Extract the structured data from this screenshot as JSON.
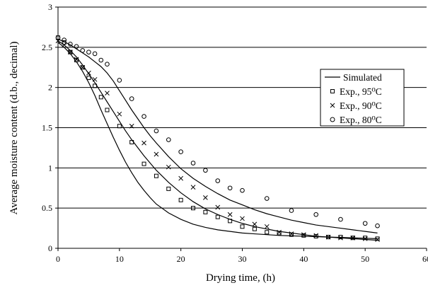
{
  "chart_data": {
    "type": "scatter",
    "xlabel": "Drying time, (h)",
    "ylabel": "Average moisture content (d.b., decimal)",
    "xlim": [
      0,
      60
    ],
    "ylim": [
      0,
      3
    ],
    "x_ticks": [
      0,
      10,
      20,
      30,
      40,
      50,
      60
    ],
    "y_ticks": [
      0,
      0.5,
      1,
      1.5,
      2,
      2.5,
      3
    ],
    "x_tick_labels": [
      "0",
      "10",
      "20",
      "30",
      "40",
      "50",
      "60"
    ],
    "y_tick_labels": [
      "0",
      "0.5",
      "1",
      "1.5",
      "2",
      "2.5",
      "3"
    ],
    "grid": "horizontal",
    "legend_position": "right",
    "legend": [
      {
        "label": "Simulated",
        "marker": "line"
      },
      {
        "label": "Exp., 95⁰C",
        "marker": "square"
      },
      {
        "label": "Exp., 90⁰C",
        "marker": "cross"
      },
      {
        "label": "Exp., 80⁰C",
        "marker": "circle"
      }
    ],
    "series": [
      {
        "name": "Exp., 95⁰C",
        "marker": "square",
        "x": [
          0,
          1,
          2,
          3,
          4,
          5,
          6,
          7,
          8,
          10,
          12,
          14,
          16,
          18,
          20,
          22,
          24,
          26,
          28,
          30,
          32,
          34,
          36,
          38,
          40,
          42,
          44,
          46,
          48,
          50,
          52
        ],
        "y": [
          2.62,
          2.56,
          2.44,
          2.34,
          2.25,
          2.12,
          2.02,
          1.88,
          1.72,
          1.52,
          1.32,
          1.05,
          0.9,
          0.74,
          0.6,
          0.5,
          0.45,
          0.39,
          0.34,
          0.27,
          0.24,
          0.2,
          0.19,
          0.17,
          0.16,
          0.15,
          0.14,
          0.14,
          0.13,
          0.13,
          0.12
        ]
      },
      {
        "name": "Exp., 90⁰C",
        "marker": "cross",
        "x": [
          0,
          1,
          2,
          3,
          4,
          5,
          6,
          8,
          10,
          12,
          14,
          16,
          18,
          20,
          22,
          24,
          26,
          28,
          30,
          32,
          34,
          36,
          38,
          40,
          42,
          44,
          46,
          48,
          50,
          52
        ],
        "y": [
          2.58,
          2.53,
          2.44,
          2.35,
          2.25,
          2.18,
          2.1,
          1.93,
          1.67,
          1.52,
          1.31,
          1.17,
          1.01,
          0.87,
          0.76,
          0.63,
          0.51,
          0.42,
          0.37,
          0.3,
          0.27,
          0.2,
          0.18,
          0.17,
          0.16,
          0.14,
          0.13,
          0.13,
          0.12,
          0.11
        ]
      },
      {
        "name": "Exp., 80⁰C",
        "marker": "circle",
        "x": [
          0,
          1,
          2,
          3,
          4,
          5,
          6,
          7,
          8,
          10,
          12,
          14,
          16,
          18,
          20,
          22,
          24,
          26,
          28,
          30,
          34,
          38,
          42,
          46,
          50,
          52
        ],
        "y": [
          2.62,
          2.59,
          2.54,
          2.51,
          2.46,
          2.44,
          2.42,
          2.34,
          2.29,
          2.09,
          1.86,
          1.64,
          1.46,
          1.35,
          1.2,
          1.06,
          0.97,
          0.84,
          0.75,
          0.72,
          0.62,
          0.47,
          0.42,
          0.36,
          0.31,
          0.28
        ]
      },
      {
        "name": "Simulated",
        "marker": "line",
        "curves": [
          {
            "x": [
              0,
              1,
              2,
              3,
              4,
              5,
              6,
              7,
              8,
              9,
              10,
              11,
              12,
              13,
              14,
              15,
              16,
              18,
              20,
              22,
              24,
              26,
              28,
              30,
              32,
              34,
              36,
              38,
              40,
              42,
              44,
              46,
              48,
              50,
              52
            ],
            "y": [
              2.56,
              2.5,
              2.42,
              2.32,
              2.2,
              2.06,
              1.9,
              1.72,
              1.55,
              1.38,
              1.22,
              1.07,
              0.94,
              0.82,
              0.72,
              0.63,
              0.55,
              0.44,
              0.36,
              0.3,
              0.26,
              0.23,
              0.21,
              0.19,
              0.18,
              0.17,
              0.16,
              0.155,
              0.15,
              0.145,
              0.14,
              0.135,
              0.13,
              0.125,
              0.12
            ]
          },
          {
            "x": [
              0,
              1,
              2,
              3,
              4,
              5,
              6,
              7,
              8,
              9,
              10,
              11,
              12,
              13,
              14,
              15,
              16,
              18,
              20,
              22,
              24,
              26,
              28,
              30,
              32,
              34,
              36,
              38,
              40,
              42,
              44,
              46,
              48,
              50,
              52
            ],
            "y": [
              2.58,
              2.53,
              2.46,
              2.38,
              2.28,
              2.17,
              2.06,
              1.94,
              1.82,
              1.7,
              1.58,
              1.46,
              1.35,
              1.25,
              1.15,
              1.06,
              0.97,
              0.82,
              0.69,
              0.58,
              0.49,
              0.42,
              0.36,
              0.31,
              0.27,
              0.24,
              0.21,
              0.19,
              0.17,
              0.15,
              0.14,
              0.13,
              0.12,
              0.11,
              0.1
            ]
          },
          {
            "x": [
              0,
              1,
              2,
              3,
              4,
              5,
              6,
              7,
              8,
              9,
              10,
              11,
              12,
              13,
              14,
              15,
              16,
              18,
              20,
              22,
              24,
              26,
              28,
              30,
              32,
              34,
              36,
              38,
              40,
              42,
              44,
              46,
              48,
              50,
              52
            ],
            "y": [
              2.6,
              2.57,
              2.53,
              2.48,
              2.43,
              2.38,
              2.32,
              2.26,
              2.18,
              2.08,
              1.96,
              1.84,
              1.72,
              1.61,
              1.5,
              1.4,
              1.31,
              1.14,
              0.99,
              0.87,
              0.77,
              0.68,
              0.6,
              0.54,
              0.48,
              0.43,
              0.39,
              0.35,
              0.32,
              0.29,
              0.27,
              0.25,
              0.23,
              0.21,
              0.19
            ]
          }
        ]
      }
    ]
  }
}
